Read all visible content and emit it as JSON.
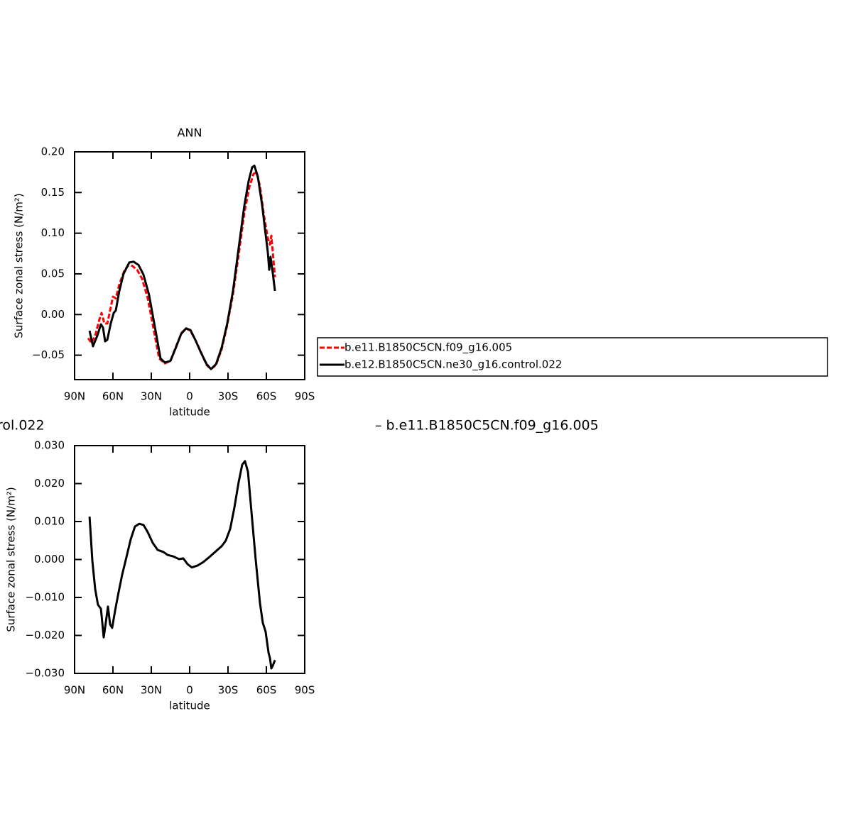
{
  "chart_data": [
    {
      "type": "line",
      "title": "ANN",
      "xlabel": "latitude",
      "ylabel": "Surface zonal stress (N/m²)",
      "xlim": [
        90,
        -90
      ],
      "xticks": [
        {
          "value": 90,
          "label": "90N"
        },
        {
          "value": 60,
          "label": "60N"
        },
        {
          "value": 30,
          "label": "30N"
        },
        0,
        {
          "value": -30,
          "label": "30S"
        },
        {
          "value": -60,
          "label": "60S"
        },
        {
          "value": -90,
          "label": "90S"
        }
      ],
      "ylim": [
        -0.08,
        0.2
      ],
      "yticks": [
        {
          "value": 0.2,
          "label": "0.20"
        },
        0.15,
        {
          "value": 0.1,
          "label": "0.10"
        },
        0.05,
        {
          "value": 0,
          "label": "0.00"
        },
        {
          "value": -0.05,
          "label": "−0.05"
        }
      ],
      "legend": "right",
      "series": [
        {
          "name": "b.e11.B1850C5CN.f09_g16.005",
          "color": "#ff0000",
          "line_style": "dashed",
          "x": [
            79.4,
            76.7,
            73.9,
            70.6,
            68.9,
            66.7,
            64.4,
            62.2,
            60,
            57.8,
            55,
            51.1,
            48.3,
            45,
            41.1,
            37.2,
            32.8,
            28.3,
            23.9,
            19.4,
            15,
            10.6,
            6.1,
            2.8,
            -0.6,
            -5,
            -9.4,
            -13.3,
            -16.7,
            -20.6,
            -25,
            -29.4,
            -33.9,
            -38.3,
            -42.8,
            -46.7,
            -50,
            -52.2,
            -55,
            -58.3,
            -61.1,
            -62.8,
            -63.9,
            -65,
            -66.7
          ],
          "values": [
            -0.029,
            -0.035,
            -0.026,
            -0.006,
            0.002,
            -0.011,
            -0.011,
            0.005,
            0.022,
            0.02,
            0.037,
            0.054,
            0.06,
            0.06,
            0.055,
            0.044,
            0.02,
            -0.017,
            -0.054,
            -0.06,
            -0.057,
            -0.039,
            -0.022,
            -0.017,
            -0.02,
            -0.033,
            -0.048,
            -0.062,
            -0.067,
            -0.062,
            -0.043,
            -0.013,
            0.025,
            0.073,
            0.125,
            0.157,
            0.173,
            0.175,
            0.158,
            0.12,
            0.094,
            0.086,
            0.097,
            0.077,
            0.046
          ]
        },
        {
          "name": "b.e12.B1850C5CN.ne30_g16.control.022",
          "color": "#000000",
          "line_style": "solid",
          "x": [
            78.3,
            75.6,
            72.2,
            69.4,
            67.8,
            66.1,
            64.4,
            61.7,
            59.4,
            57.8,
            55,
            51.7,
            47.2,
            43.9,
            40,
            36.1,
            31.7,
            27.2,
            22.8,
            19.4,
            15,
            10.6,
            6.7,
            2.8,
            -0.6,
            -4.4,
            -8.9,
            -13.3,
            -16.7,
            -20.6,
            -25,
            -29.4,
            -33.9,
            -38.3,
            -42.8,
            -46.1,
            -48.9,
            -50.6,
            -53.3,
            -56.7,
            -59.4,
            -61.1,
            -62.2,
            -63.3,
            -65,
            -66.7
          ],
          "values": [
            -0.02,
            -0.039,
            -0.026,
            -0.012,
            -0.016,
            -0.033,
            -0.031,
            -0.011,
            0.002,
            0.005,
            0.029,
            0.05,
            0.064,
            0.065,
            0.061,
            0.049,
            0.024,
            -0.015,
            -0.054,
            -0.059,
            -0.057,
            -0.04,
            -0.024,
            -0.017,
            -0.019,
            -0.031,
            -0.047,
            -0.061,
            -0.067,
            -0.061,
            -0.041,
            -0.011,
            0.029,
            0.081,
            0.134,
            0.164,
            0.181,
            0.183,
            0.17,
            0.134,
            0.099,
            0.077,
            0.055,
            0.071,
            0.051,
            0.029
          ]
        }
      ]
    },
    {
      "type": "line",
      "xlabel": "latitude",
      "ylabel": "Surface zonal stress (N/m²)",
      "annotations": [
        "rol.022",
        "– b.e11.B1850C5CN.f09_g16.005"
      ],
      "xlim": [
        90,
        -90
      ],
      "xticks": [
        {
          "value": 90,
          "label": "90N"
        },
        {
          "value": 60,
          "label": "60N"
        },
        {
          "value": 30,
          "label": "30N"
        },
        0,
        {
          "value": -30,
          "label": "30S"
        },
        {
          "value": -60,
          "label": "60S"
        },
        {
          "value": -90,
          "label": "90S"
        }
      ],
      "ylim": [
        -0.03,
        0.03
      ],
      "yticks": [
        {
          "value": 0.03,
          "label": "0.030"
        },
        {
          "value": 0.02,
          "label": "0.020"
        },
        {
          "value": 0.01,
          "label": "0.010"
        },
        {
          "value": 0,
          "label": "0.000"
        },
        {
          "value": -0.01,
          "label": "−0.010"
        },
        {
          "value": -0.02,
          "label": "−0.020"
        },
        {
          "value": -0.03,
          "label": "−0.030"
        }
      ],
      "series": [
        {
          "color": "#000000",
          "line_style": "solid",
          "x": [
            78.3,
            76.1,
            73.9,
            71.7,
            69.4,
            67.2,
            65.6,
            63.9,
            62.2,
            60.6,
            58.3,
            55.6,
            52.8,
            49.4,
            46.1,
            42.8,
            39.4,
            36.1,
            32.8,
            28.9,
            25,
            20.6,
            17.2,
            12.8,
            8.3,
            5,
            1.7,
            -1.7,
            -6.1,
            -10.6,
            -15.6,
            -20,
            -25,
            -28.3,
            -31.7,
            -35,
            -38.3,
            -41.1,
            -43.3,
            -45.6,
            -48.3,
            -51.7,
            -55,
            -57.2,
            -59.4,
            -61.7,
            -62.8,
            -63.9,
            -65,
            -66.7
          ],
          "values": [
            0.0113,
            -0.0003,
            -0.0078,
            -0.0119,
            -0.013,
            -0.0205,
            -0.0167,
            -0.0124,
            -0.0171,
            -0.018,
            -0.0134,
            -0.0087,
            -0.004,
            0.0007,
            0.0053,
            0.0087,
            0.0094,
            0.0091,
            0.0072,
            0.0044,
            0.0025,
            0.002,
            0.0012,
            0.0008,
            0.0001,
            0.0003,
            -0.0012,
            -0.0021,
            -0.0016,
            -0.0007,
            0.0007,
            0.002,
            0.0035,
            0.005,
            0.0081,
            0.0137,
            0.0203,
            0.025,
            0.0259,
            0.0231,
            0.0128,
            -0.0003,
            -0.0115,
            -0.0167,
            -0.019,
            -0.0246,
            -0.0259,
            -0.0287,
            -0.028,
            -0.0265
          ]
        }
      ]
    }
  ]
}
